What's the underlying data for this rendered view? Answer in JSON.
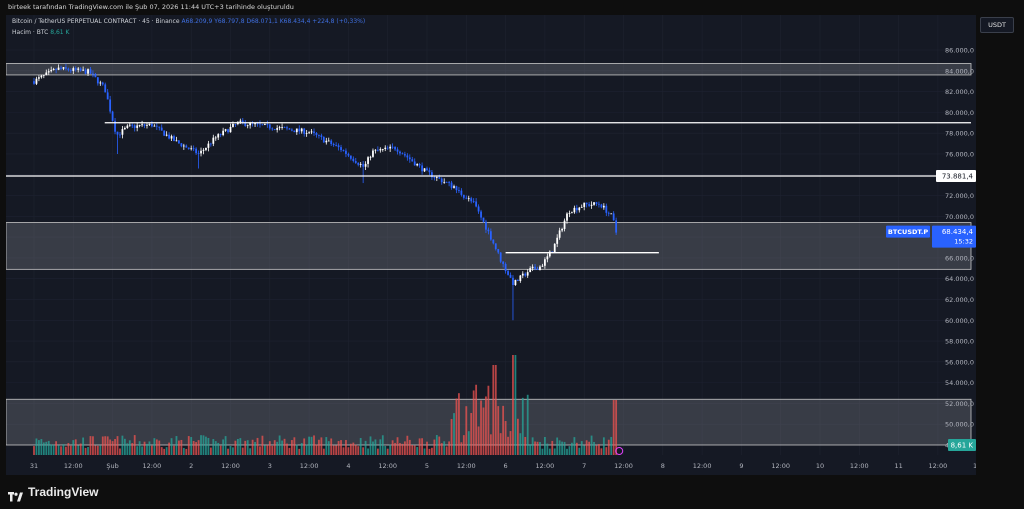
{
  "header": {
    "attribution": "birteek tarafından TradingView.com ile Şub 07, 2026 11:44 UTC+3 tarihinde oluşturuldu"
  },
  "legend": {
    "symbol": "Bitcoin / TetherUS PERPETUAL CONTRACT · 45 · Binance",
    "ohlc": "A68.209,9  Y68.797,8  D68.071,1  K68.434,4  +224,8 (+0,33%)",
    "volume_label": "Hacim · BTC",
    "volume_value": "8,61 K"
  },
  "currency_badge": "USDT",
  "price_tags": {
    "resistance_label": "73.881,4",
    "symbol_tag": "BTCUSDT.P",
    "last_price": "68.434,4",
    "countdown": "15:32",
    "volume_tag": "8,61 K"
  },
  "footer": {
    "brand": "TradingView"
  },
  "colors": {
    "background": "#151924",
    "up": "#ffffff",
    "down": "#2962ff",
    "vol_up": "#26a69a",
    "vol_down": "#ef5350",
    "zone_fill": "#7a7d86",
    "line": "#ffffff",
    "price_tag": "#2962ff"
  },
  "chart_data": {
    "type": "candlestick",
    "title": "Bitcoin / TetherUS PERPETUAL CONTRACT · 45 · Binance",
    "timeframe": "45",
    "ylim": [
      47000,
      87000
    ],
    "y_ticks": [
      "48.000,0",
      "50.000,0",
      "52.000,0",
      "54.000,0",
      "56.000,0",
      "58.000,0",
      "60.000,0",
      "62.000,0",
      "64.000,0",
      "66.000,0",
      "68.000,0",
      "70.000,0",
      "72.000,0",
      "74.000,0",
      "76.000,0",
      "78.000,0",
      "80.000,0",
      "82.000,0",
      "84.000,0",
      "86.000,0"
    ],
    "x_ticks": [
      "31",
      "12:00",
      "Şub",
      "12:00",
      "2",
      "12:00",
      "3",
      "12:00",
      "4",
      "12:00",
      "5",
      "12:00",
      "6",
      "12:00",
      "7",
      "12:00",
      "8",
      "12:00",
      "9",
      "12:00",
      "10",
      "12:00",
      "11",
      "12:00",
      "12"
    ],
    "x_tick_days": [
      0,
      0.5,
      1,
      1.5,
      2,
      2.5,
      3,
      3.5,
      4,
      4.5,
      5,
      5.5,
      6,
      6.5,
      7,
      7.5,
      8,
      8.5,
      9,
      9.5,
      10,
      10.5,
      11,
      11.5,
      12
    ],
    "price_path_keypoints": [
      [
        0.0,
        83000
      ],
      [
        0.3,
        84200
      ],
      [
        0.7,
        83900
      ],
      [
        0.9,
        82300
      ],
      [
        1.05,
        77800
      ],
      [
        1.2,
        78600
      ],
      [
        1.5,
        78800
      ],
      [
        1.8,
        77200
      ],
      [
        2.1,
        76000
      ],
      [
        2.3,
        77500
      ],
      [
        2.6,
        79000
      ],
      [
        3.0,
        78600
      ],
      [
        3.5,
        78100
      ],
      [
        3.9,
        76500
      ],
      [
        4.2,
        74700
      ],
      [
        4.3,
        76200
      ],
      [
        4.6,
        76600
      ],
      [
        5.0,
        74200
      ],
      [
        5.3,
        73000
      ],
      [
        5.6,
        71200
      ],
      [
        5.8,
        68200
      ],
      [
        5.95,
        65600
      ],
      [
        6.1,
        63500
      ],
      [
        6.3,
        64800
      ],
      [
        6.45,
        65200
      ],
      [
        6.6,
        66800
      ],
      [
        6.8,
        70500
      ],
      [
        7.0,
        71100
      ],
      [
        7.2,
        71200
      ],
      [
        7.35,
        70000
      ],
      [
        7.42,
        68434
      ]
    ],
    "extremes": {
      "high": 84400,
      "low": 60000
    },
    "last_close": 68434.4,
    "horizontal_levels": [
      {
        "kind": "resistance_line",
        "price": 79000
      },
      {
        "kind": "resistance_line",
        "price": 73881.4
      },
      {
        "kind": "support_line",
        "price": 66500
      }
    ],
    "zones": [
      {
        "from": 83600,
        "to": 84700
      },
      {
        "from": 64900,
        "to": 69400
      },
      {
        "from": 48000,
        "to": 52400
      }
    ],
    "volume_last": "8,61 K"
  }
}
